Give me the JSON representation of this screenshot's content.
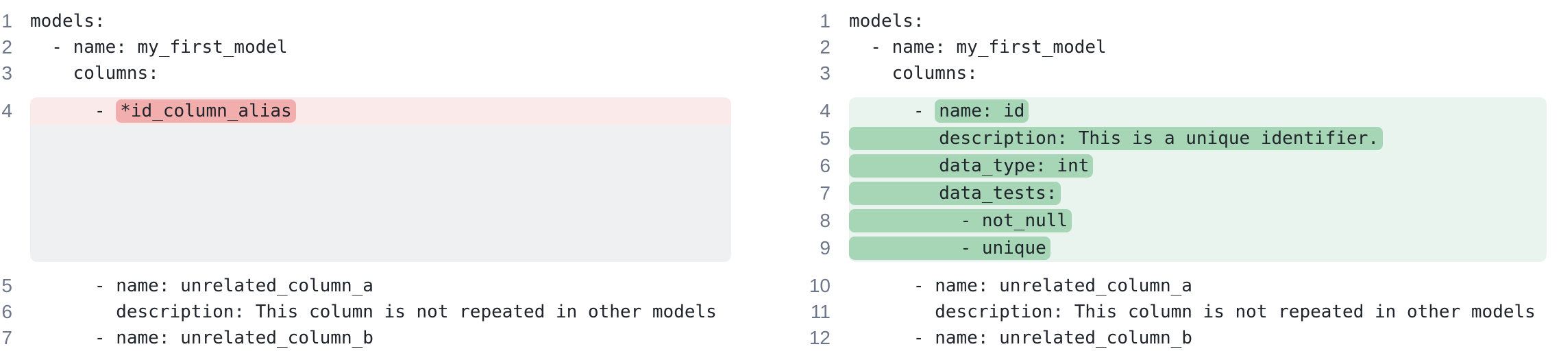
{
  "diff": {
    "colors": {
      "removed_line_bg": "#FBEAEA",
      "removed_word_bg": "#F2ADAD",
      "added_line_bg": "#EAF4EE",
      "added_word_bg": "#A7D6B7",
      "placeholder_bg": "#EEF0F2",
      "code_text": "#20242B",
      "line_number_text": "#6E7789",
      "page_bg": "#FFFFFF"
    },
    "panes": [
      {
        "name": "before",
        "lines": [
          {
            "num": 1,
            "change": "none",
            "segments": [
              {
                "t": "models:"
              }
            ]
          },
          {
            "num": 2,
            "change": "none",
            "segments": [
              {
                "t": "  - name: my_first_model"
              }
            ]
          },
          {
            "num": 3,
            "change": "none",
            "segments": [
              {
                "t": "    columns:"
              }
            ]
          },
          {
            "num": 4,
            "change": "removed",
            "segments": [
              {
                "t": "      - "
              },
              {
                "t": "*id_column_alias",
                "mark": true
              }
            ]
          },
          {
            "placeholder": true,
            "rows": 5
          },
          {
            "num": 5,
            "change": "none",
            "segments": [
              {
                "t": "      - name: unrelated_column_a"
              }
            ]
          },
          {
            "num": 6,
            "change": "none",
            "segments": [
              {
                "t": "        description: This column is not repeated in other models"
              }
            ]
          },
          {
            "num": 7,
            "change": "none",
            "segments": [
              {
                "t": "      - name: unrelated_column_b"
              }
            ]
          }
        ]
      },
      {
        "name": "after",
        "lines": [
          {
            "num": 1,
            "change": "none",
            "segments": [
              {
                "t": "models:"
              }
            ]
          },
          {
            "num": 2,
            "change": "none",
            "segments": [
              {
                "t": "  - name: my_first_model"
              }
            ]
          },
          {
            "num": 3,
            "change": "none",
            "segments": [
              {
                "t": "    columns:"
              }
            ]
          },
          {
            "num": 4,
            "change": "added",
            "segments": [
              {
                "t": "      - "
              },
              {
                "t": "name: id",
                "mark": true
              }
            ]
          },
          {
            "num": 5,
            "change": "added",
            "segments": [
              {
                "t": "        description: This is a unique identifier.",
                "mark": true
              }
            ]
          },
          {
            "num": 6,
            "change": "added",
            "segments": [
              {
                "t": "        data_type: int",
                "mark": true
              }
            ]
          },
          {
            "num": 7,
            "change": "added",
            "segments": [
              {
                "t": "        data_tests:",
                "mark": true
              }
            ]
          },
          {
            "num": 8,
            "change": "added",
            "segments": [
              {
                "t": "          - not_null",
                "mark": true
              }
            ]
          },
          {
            "num": 9,
            "change": "added",
            "segments": [
              {
                "t": "          - unique",
                "mark": true
              }
            ]
          },
          {
            "num": 10,
            "change": "none",
            "segments": [
              {
                "t": "      - name: unrelated_column_a"
              }
            ]
          },
          {
            "num": 11,
            "change": "none",
            "segments": [
              {
                "t": "        description: This column is not repeated in other models"
              }
            ]
          },
          {
            "num": 12,
            "change": "none",
            "segments": [
              {
                "t": "      - name: unrelated_column_b"
              }
            ]
          }
        ]
      }
    ]
  }
}
